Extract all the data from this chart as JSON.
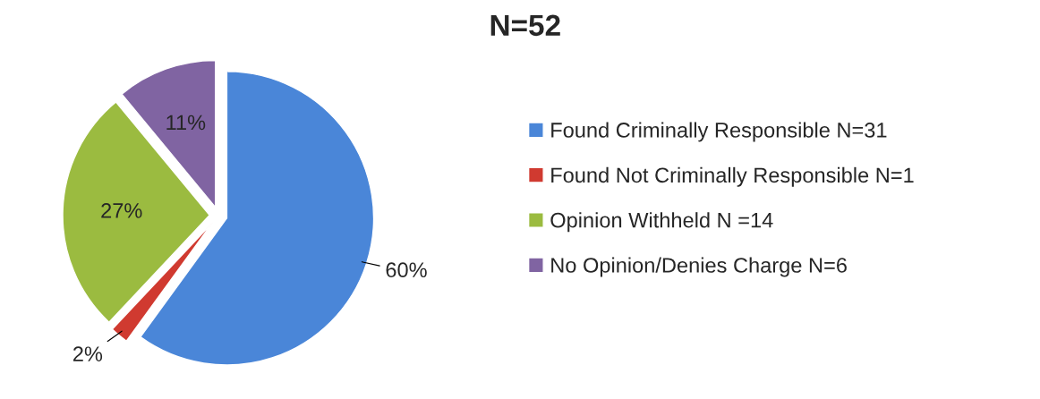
{
  "chart_data": {
    "type": "pie",
    "title": "N=52",
    "categories": [
      "Found Criminally Responsible N=31",
      "Found Not Criminally Responsible N=1",
      "Opinion Withheld N =14",
      "No Opinion/Denies Charge N=6"
    ],
    "values": [
      60,
      2,
      27,
      11
    ],
    "value_labels": [
      "60%",
      "2%",
      "27%",
      "11%"
    ],
    "colors": [
      "#4a86d8",
      "#d03a30",
      "#9bbb40",
      "#8064a2"
    ],
    "legend": "right"
  }
}
